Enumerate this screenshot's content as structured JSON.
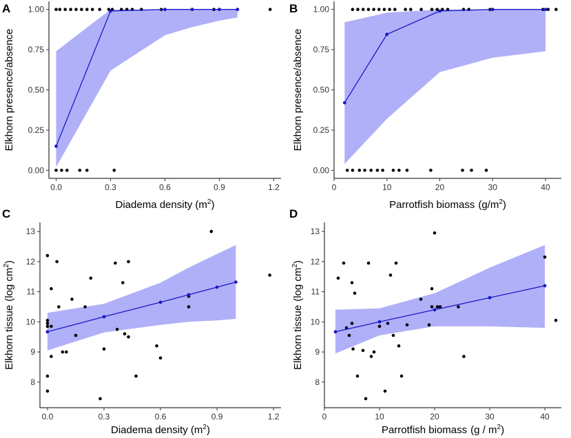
{
  "chart_data": [
    {
      "panel": "A",
      "type": "line+scatter",
      "xlabel": "Diadema density",
      "xlabel_unit_base": "m",
      "xlabel_unit_exp": "2",
      "ylabel": "Elkhorn presence/absence",
      "xlim": [
        -0.04,
        1.24
      ],
      "ylim": [
        -0.05,
        1.05
      ],
      "xticks": [
        0.0,
        0.3,
        0.6,
        0.9,
        1.2
      ],
      "xtick_labels": [
        "0.0",
        "0.3",
        "0.6",
        "0.9",
        "1.2"
      ],
      "yticks": [
        0.0,
        0.25,
        0.5,
        0.75,
        1.0
      ],
      "ytick_labels": [
        "0.00",
        "0.25",
        "0.50",
        "0.75",
        "1.00"
      ],
      "fit": {
        "x": [
          0.0,
          0.3,
          0.6,
          0.75,
          0.9,
          1.0
        ],
        "y": [
          0.15,
          0.99,
          1.0,
          1.0,
          1.0,
          1.0
        ],
        "lower": [
          0.02,
          0.62,
          0.84,
          0.89,
          0.93,
          0.95
        ],
        "upper": [
          0.74,
          1.0,
          1.0,
          1.0,
          1.0,
          1.0
        ]
      },
      "points": {
        "x": [
          0.0,
          0.02,
          0.05,
          0.08,
          0.11,
          0.14,
          0.17,
          0.2,
          0.24,
          0.29,
          0.31,
          0.36,
          0.39,
          0.42,
          0.47,
          0.58,
          0.6,
          0.75,
          0.87,
          0.9,
          1.0,
          1.18,
          0.0,
          0.03,
          0.06,
          0.13,
          0.17,
          0.32
        ],
        "y": [
          1,
          1,
          1,
          1,
          1,
          1,
          1,
          1,
          1,
          1,
          1,
          1,
          1,
          1,
          1,
          1,
          1,
          1,
          1,
          1,
          1,
          1,
          0,
          0,
          0,
          0,
          0,
          0
        ]
      }
    },
    {
      "panel": "B",
      "type": "line+scatter",
      "xlabel": "Parrotfish biomass",
      "xlabel_unit_base": "(g/m",
      "xlabel_unit_exp": "2",
      "xlabel_unit_close": ")",
      "ylabel": "Elkhorn presence/absence",
      "xlim": [
        0,
        43
      ],
      "ylim": [
        -0.05,
        1.05
      ],
      "xticks": [
        0,
        10,
        20,
        30,
        40
      ],
      "xtick_labels": [
        "0",
        "10",
        "20",
        "30",
        "40"
      ],
      "yticks": [
        0.0,
        0.25,
        0.5,
        0.75,
        1.0
      ],
      "ytick_labels": [
        "0.00",
        "0.25",
        "0.50",
        "0.75",
        "1.00"
      ],
      "fit": {
        "x": [
          2,
          10,
          20,
          30,
          40
        ],
        "y": [
          0.42,
          0.845,
          0.99,
          1.0,
          1.0
        ],
        "lower": [
          0.04,
          0.32,
          0.61,
          0.7,
          0.74
        ],
        "upper": [
          0.92,
          0.98,
          1.0,
          1.0,
          1.0
        ]
      },
      "points": {
        "x": [
          3.5,
          4.5,
          5.5,
          6.5,
          7.5,
          8.5,
          9.5,
          10.5,
          11.5,
          13.5,
          14.5,
          16.5,
          18.5,
          19.5,
          20.5,
          21.5,
          24.5,
          25.5,
          29.5,
          30.0,
          39.5,
          40.5,
          42.0,
          2.5,
          3.5,
          4.8,
          5.8,
          7.0,
          8.2,
          9.2,
          11.2,
          12.3,
          13.8,
          18.3,
          24.3,
          26.0,
          28.8
        ],
        "y": [
          1,
          1,
          1,
          1,
          1,
          1,
          1,
          1,
          1,
          1,
          1,
          1,
          1,
          1,
          1,
          1,
          1,
          1,
          1,
          1,
          1,
          1,
          1,
          0,
          0,
          0,
          0,
          0,
          0,
          0,
          0,
          0,
          0,
          0,
          0,
          0,
          0
        ]
      }
    },
    {
      "panel": "C",
      "type": "line+scatter",
      "xlabel": "Diadema density",
      "xlabel_unit_base": "m",
      "xlabel_unit_exp": "2",
      "ylabel": "Elkhorn tissue",
      "ylabel_unit_base": "(log cm",
      "ylabel_unit_exp": "2",
      "ylabel_unit_close": ")",
      "xlim": [
        -0.04,
        1.24
      ],
      "ylim": [
        7.15,
        13.3
      ],
      "xticks": [
        0.0,
        0.3,
        0.6,
        0.9,
        1.2
      ],
      "xtick_labels": [
        "0.0",
        "0.3",
        "0.6",
        "0.9",
        "1.2"
      ],
      "yticks": [
        8,
        9,
        10,
        11,
        12,
        13
      ],
      "ytick_labels": [
        "8",
        "9",
        "10",
        "11",
        "12",
        "13"
      ],
      "fit": {
        "x": [
          0.0,
          0.3,
          0.6,
          0.75,
          0.9,
          1.0
        ],
        "y": [
          9.67,
          10.17,
          10.65,
          10.9,
          11.15,
          11.32
        ],
        "lower": [
          9.05,
          9.65,
          9.9,
          10.0,
          10.05,
          10.1
        ],
        "upper": [
          10.3,
          10.6,
          11.3,
          11.8,
          12.25,
          12.55
        ]
      },
      "points": {
        "x": [
          0.0,
          0.0,
          0.0,
          0.0,
          0.0,
          0.0,
          0.02,
          0.02,
          0.02,
          0.05,
          0.06,
          0.08,
          0.1,
          0.13,
          0.15,
          0.2,
          0.23,
          0.28,
          0.3,
          0.36,
          0.37,
          0.4,
          0.41,
          0.43,
          0.43,
          0.47,
          0.58,
          0.6,
          0.75,
          0.75,
          0.87,
          1.18
        ],
        "y": [
          12.2,
          10.05,
          9.95,
          9.85,
          8.2,
          7.7,
          11.1,
          9.85,
          8.85,
          12.0,
          10.5,
          9.0,
          9.0,
          10.75,
          9.55,
          10.5,
          11.45,
          7.45,
          9.1,
          11.95,
          9.75,
          11.3,
          9.6,
          12.0,
          9.5,
          8.2,
          9.2,
          8.8,
          10.85,
          10.5,
          13.0,
          11.55
        ]
      }
    },
    {
      "panel": "D",
      "type": "line+scatter",
      "xlabel": "Parrotfish biomass",
      "xlabel_unit_base": "(g / m",
      "xlabel_unit_exp": "2",
      "xlabel_unit_close": ")",
      "ylabel": "Elkhorn tissue",
      "ylabel_unit_base": "(log cm",
      "ylabel_unit_exp": "2",
      "ylabel_unit_close": ")",
      "xlim": [
        0,
        43
      ],
      "ylim": [
        7.15,
        13.3
      ],
      "xticks": [
        0,
        10,
        20,
        30,
        40
      ],
      "xtick_labels": [
        "0",
        "10",
        "20",
        "30",
        "40"
      ],
      "yticks": [
        8,
        9,
        10,
        11,
        12,
        13
      ],
      "ytick_labels": [
        "8",
        "9",
        "10",
        "11",
        "12",
        "13"
      ],
      "fit": {
        "x": [
          2,
          10,
          20,
          30,
          40
        ],
        "y": [
          9.67,
          10.0,
          10.4,
          10.8,
          11.2
        ],
        "lower": [
          8.95,
          9.55,
          9.85,
          9.85,
          9.8
        ],
        "upper": [
          10.4,
          10.45,
          10.95,
          11.8,
          12.55
        ]
      },
      "points": {
        "x": [
          2.5,
          3.5,
          4.0,
          4.5,
          5.0,
          5.0,
          5.2,
          5.5,
          6.0,
          7.0,
          7.5,
          8.0,
          8.5,
          9.0,
          10.0,
          11.0,
          11.5,
          12.0,
          12.5,
          13.0,
          13.5,
          14.0,
          15.0,
          17.5,
          19.0,
          19.5,
          19.5,
          20.0,
          20.5,
          21.0,
          24.3,
          25.3,
          40.0,
          42.0
        ],
        "y": [
          11.45,
          11.95,
          9.8,
          9.55,
          9.95,
          11.3,
          9.1,
          10.95,
          8.2,
          9.05,
          7.45,
          11.95,
          8.85,
          9.0,
          9.85,
          7.7,
          9.95,
          11.55,
          9.55,
          11.95,
          9.2,
          8.2,
          9.9,
          10.75,
          9.9,
          10.5,
          11.1,
          12.95,
          10.5,
          10.5,
          10.5,
          8.85,
          12.15,
          10.05
        ]
      }
    }
  ]
}
